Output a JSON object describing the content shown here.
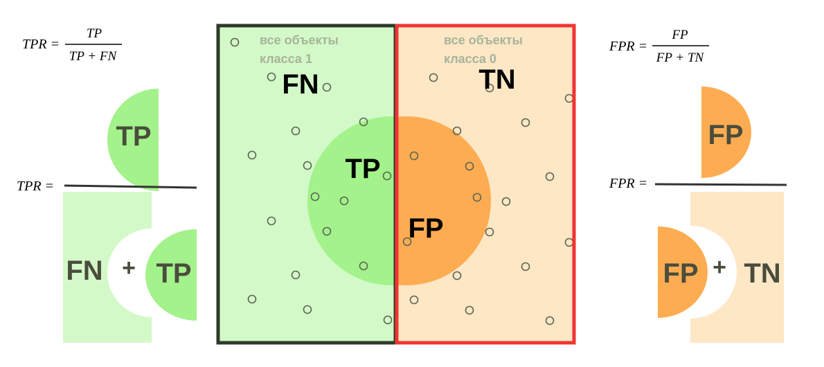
{
  "colors": {
    "class1_fill": "#d3f9c8",
    "class1_border": "#2e3a2b",
    "class0_fill": "#fde7c5",
    "class0_border": "#ef3434",
    "tp_fill": "#a3f28b",
    "fp_fill": "#fdac52",
    "label_dark": "#4a4d3c",
    "faint_label": "#a7b49a",
    "dot_stroke": "#5b6453",
    "fraction_bar": "#333333"
  },
  "center": {
    "class1_label": [
      "все объекты",
      "класса 1"
    ],
    "class0_label": [
      "все объекты",
      "класса 0"
    ],
    "fn": "FN",
    "tn": "TN",
    "tp": "TP",
    "fp": "FP"
  },
  "left": {
    "formula": {
      "lhs": "TPR =",
      "numerator": "TP",
      "denominator": "TP + FN"
    },
    "visual": {
      "lhs": "TPR =",
      "tp": "TP",
      "fn": "FN",
      "plus": "+",
      "tp2": "TP"
    }
  },
  "right": {
    "formula": {
      "lhs": "FPR =",
      "numerator": "FP",
      "denominator": "FP + TN"
    },
    "visual": {
      "lhs": "FPR =",
      "fp": "FP",
      "fp2": "FP",
      "plus": "+",
      "tn": "TN"
    }
  }
}
